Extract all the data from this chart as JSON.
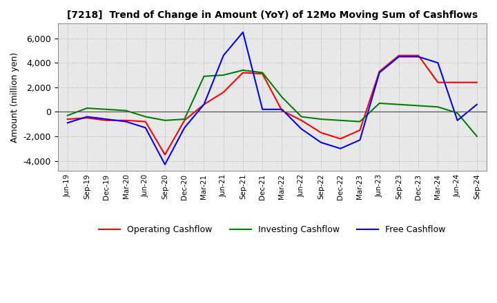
{
  "title": "[7218]  Trend of Change in Amount (YoY) of 12Mo Moving Sum of Cashflows",
  "ylabel": "Amount (million yen)",
  "background_color": "#ffffff",
  "plot_bg_color": "#e8e8e8",
  "grid_color": "#aaaaaa",
  "xlabels": [
    "Jun-19",
    "Sep-19",
    "Dec-19",
    "Mar-20",
    "Jun-20",
    "Sep-20",
    "Dec-20",
    "Mar-21",
    "Jun-21",
    "Sep-21",
    "Dec-21",
    "Mar-22",
    "Jun-22",
    "Sep-22",
    "Dec-22",
    "Mar-23",
    "Jun-23",
    "Sep-23",
    "Dec-23",
    "Mar-24",
    "Jun-24",
    "Sep-24"
  ],
  "operating": [
    -600,
    -500,
    -700,
    -700,
    -800,
    -3500,
    -700,
    600,
    1600,
    3200,
    3100,
    100,
    -700,
    -1700,
    -2200,
    -1500,
    3300,
    4600,
    4600,
    2400,
    2400,
    2400
  ],
  "investing": [
    -300,
    300,
    200,
    100,
    -400,
    -700,
    -600,
    2900,
    3000,
    3400,
    3200,
    1200,
    -400,
    -600,
    -700,
    -800,
    700,
    600,
    500,
    400,
    -100,
    -2000
  ],
  "free": [
    -900,
    -400,
    -600,
    -800,
    -1300,
    -4300,
    -1300,
    600,
    4600,
    6500,
    200,
    200,
    -1400,
    -2500,
    -3000,
    -2300,
    3200,
    4500,
    4500,
    4000,
    -700,
    600
  ],
  "ylim": [
    -4800,
    7200
  ],
  "yticks": [
    -4000,
    -2000,
    0,
    2000,
    4000,
    6000
  ],
  "line_colors": {
    "operating": "#ff0000",
    "investing": "#008000",
    "free": "#0000ff"
  },
  "legend_labels": [
    "Operating Cashflow",
    "Investing Cashflow",
    "Free Cashflow"
  ]
}
